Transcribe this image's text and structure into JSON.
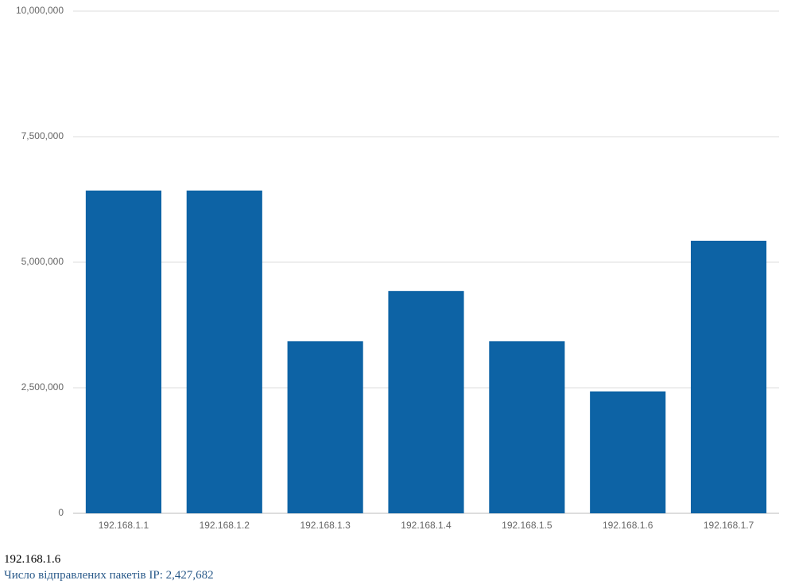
{
  "chart_data": {
    "type": "bar",
    "categories": [
      "192.168.1.1",
      "192.168.1.2",
      "192.168.1.3",
      "192.168.1.4",
      "192.168.1.5",
      "192.168.1.6",
      "192.168.1.7"
    ],
    "values": [
      6427682,
      6427682,
      3427682,
      4427682,
      3427682,
      2427682,
      5427682
    ],
    "color": "#0d63a5",
    "ylim": [
      0,
      10000000
    ],
    "yticks": [
      0,
      {
        "value": 2500000,
        "label": "2,500,000"
      },
      {
        "value": 5000000,
        "label": "5,000,000"
      },
      {
        "value": 7500000,
        "label": "7,500,000"
      },
      {
        "value": 10000000,
        "label": "10,000,000"
      }
    ],
    "grid": true,
    "tooltip": {
      "category": "192.168.1.6",
      "text": "Число відправлених пакетів IP:",
      "value": {
        "value": 2427682,
        "label": "2,427,682"
      }
    }
  }
}
